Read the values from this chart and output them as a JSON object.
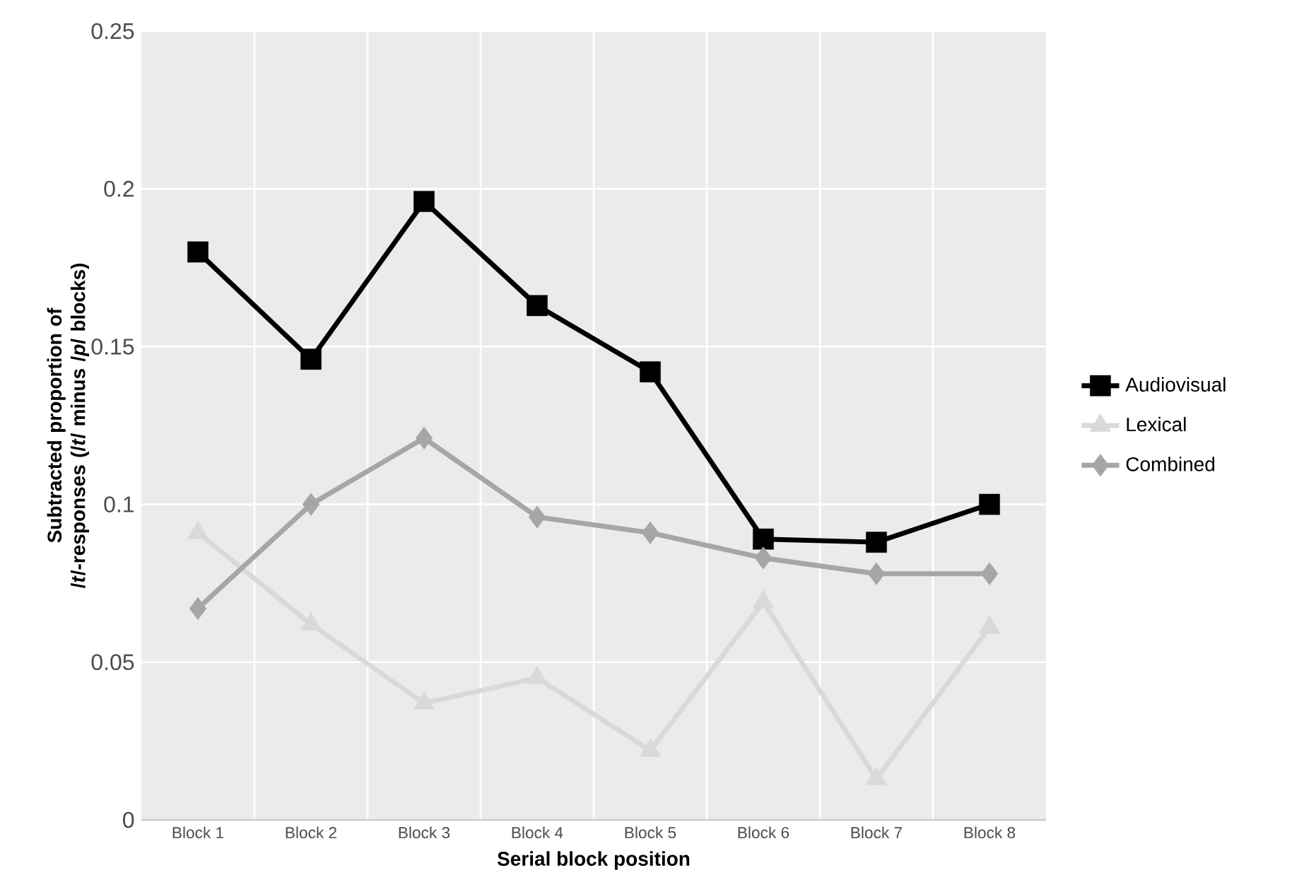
{
  "chart_data": {
    "type": "line",
    "xlabel": "Serial block position",
    "ylabel": "Subtracted proportion of /*t*/-responses (/*t*/ minus /*p*/ blocks)",
    "categories": [
      "Block 1",
      "Block 2",
      "Block 3",
      "Block 4",
      "Block 5",
      "Block 6",
      "Block 7",
      "Block 8"
    ],
    "series": [
      {
        "name": "Audiovisual",
        "color": "#000000",
        "marker": "square",
        "values": [
          0.18,
          0.146,
          0.196,
          0.163,
          0.142,
          0.089,
          0.088,
          0.1
        ]
      },
      {
        "name": "Lexical",
        "color": "#d9d9d9",
        "marker": "triangle",
        "values": [
          0.091,
          0.062,
          0.037,
          0.045,
          0.022,
          0.069,
          0.013,
          0.061
        ]
      },
      {
        "name": "Combined",
        "color": "#a6a6a6",
        "marker": "diamond",
        "values": [
          0.067,
          0.1,
          0.121,
          0.096,
          0.091,
          0.083,
          0.078,
          0.078
        ]
      }
    ],
    "ylim": [
      0,
      0.25
    ],
    "yticks": [
      0,
      0.05,
      0.1,
      0.15,
      0.2,
      0.25
    ],
    "grid": true,
    "legend": "right",
    "line_style": "solid"
  }
}
